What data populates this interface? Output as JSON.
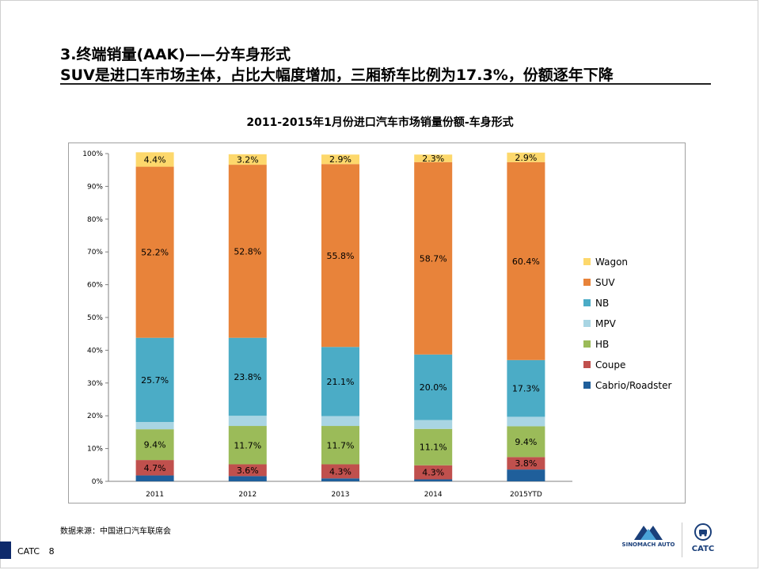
{
  "slide": {
    "title_line1": "3.终端销量(AAK)——分车身形式",
    "title_line2": "SUV是进口车市场主体，占比大幅度增加，三厢轿车比例为17.3%，份额逐年下降",
    "source": "数据来源：中国进口汽车联席会",
    "footer_label": "CATC",
    "page_number": "8",
    "logo_left_text": "SINOMACH AUTO",
    "logo_right_text": "CATC"
  },
  "chart_data": {
    "type": "bar",
    "stacked": true,
    "title": "2011-2015年1月份进口汽车市场销量份额-车身形式",
    "categories": [
      "2011",
      "2012",
      "2013",
      "2014",
      "2015YTD"
    ],
    "ylim": [
      0,
      100
    ],
    "y_ticks": [
      "0%",
      "10%",
      "20%",
      "30%",
      "40%",
      "50%",
      "60%",
      "70%",
      "80%",
      "90%",
      "100%"
    ],
    "legend_position": "right",
    "grid": false,
    "series": [
      {
        "name": "Cabrio/Roadster",
        "color": "#1f5f9b",
        "values": [
          1.8,
          1.6,
          0.9,
          0.6,
          3.6
        ]
      },
      {
        "name": "Coupe",
        "color": "#c0504d",
        "values": [
          4.7,
          3.6,
          4.3,
          4.3,
          3.8
        ]
      },
      {
        "name": "HB",
        "color": "#9bbb59",
        "values": [
          9.4,
          11.7,
          11.7,
          11.1,
          9.4
        ]
      },
      {
        "name": "MPV",
        "color": "#a9d5e3",
        "values": [
          2.2,
          3.1,
          3.0,
          2.7,
          2.9
        ]
      },
      {
        "name": "NB",
        "color": "#4bacc6",
        "values": [
          25.7,
          23.8,
          21.1,
          20.0,
          17.3
        ]
      },
      {
        "name": "SUV",
        "color": "#e8833a",
        "values": [
          52.2,
          52.8,
          55.8,
          58.7,
          60.4
        ]
      },
      {
        "name": "Wagon",
        "color": "#fdd86c",
        "values": [
          4.4,
          3.2,
          2.9,
          2.3,
          2.9
        ]
      }
    ],
    "data_labels": {
      "Coupe": [
        "4.7%",
        "3.6%",
        "4.3%",
        "4.3%",
        "3.8%"
      ],
      "HB": [
        "9.4%",
        "11.7%",
        "11.7%",
        "11.1%",
        "9.4%"
      ],
      "NB": [
        "25.7%",
        "23.8%",
        "21.1%",
        "20.0%",
        "17.3%"
      ],
      "SUV": [
        "52.2%",
        "52.8%",
        "55.8%",
        "58.7%",
        "60.4%"
      ],
      "Wagon": [
        "4.4%",
        "3.2%",
        "2.9%",
        "2.3%",
        "2.9%"
      ]
    },
    "legend_order": [
      "Wagon",
      "SUV",
      "NB",
      "MPV",
      "HB",
      "Coupe",
      "Cabrio/Roadster"
    ]
  }
}
